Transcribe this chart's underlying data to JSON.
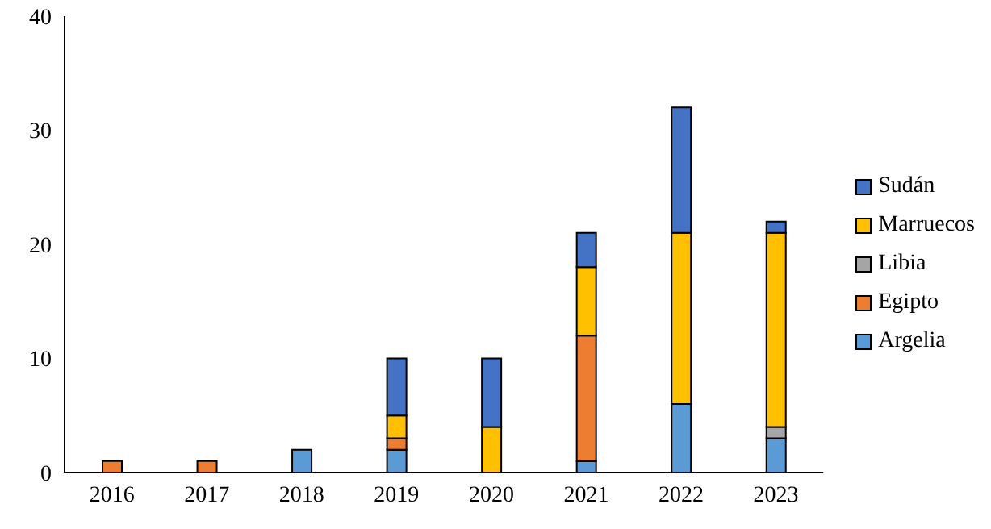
{
  "chart_data": {
    "type": "bar",
    "stacked": true,
    "categories": [
      "2016",
      "2017",
      "2018",
      "2019",
      "2020",
      "2021",
      "2022",
      "2023"
    ],
    "series": [
      {
        "name": "Argelia",
        "color": "#5b9bd5",
        "values": [
          null,
          null,
          2,
          2,
          null,
          1,
          6,
          3
        ]
      },
      {
        "name": "Egipto",
        "color": "#ed7d31",
        "values": [
          1,
          1,
          null,
          1,
          null,
          11,
          null,
          null
        ]
      },
      {
        "name": "Libia",
        "color": "#a5a5a5",
        "values": [
          null,
          null,
          null,
          null,
          null,
          null,
          null,
          1
        ]
      },
      {
        "name": "Marruecos",
        "color": "#ffc000",
        "values": [
          null,
          null,
          null,
          2,
          4,
          6,
          15,
          17
        ]
      },
      {
        "name": "Sudán",
        "color": "#4472c4",
        "values": [
          null,
          null,
          null,
          5,
          6,
          3,
          11,
          1
        ]
      }
    ],
    "ylim": [
      0,
      40
    ],
    "yticks": [
      0,
      10,
      20,
      30,
      40
    ],
    "grid": false,
    "legend": "right"
  }
}
